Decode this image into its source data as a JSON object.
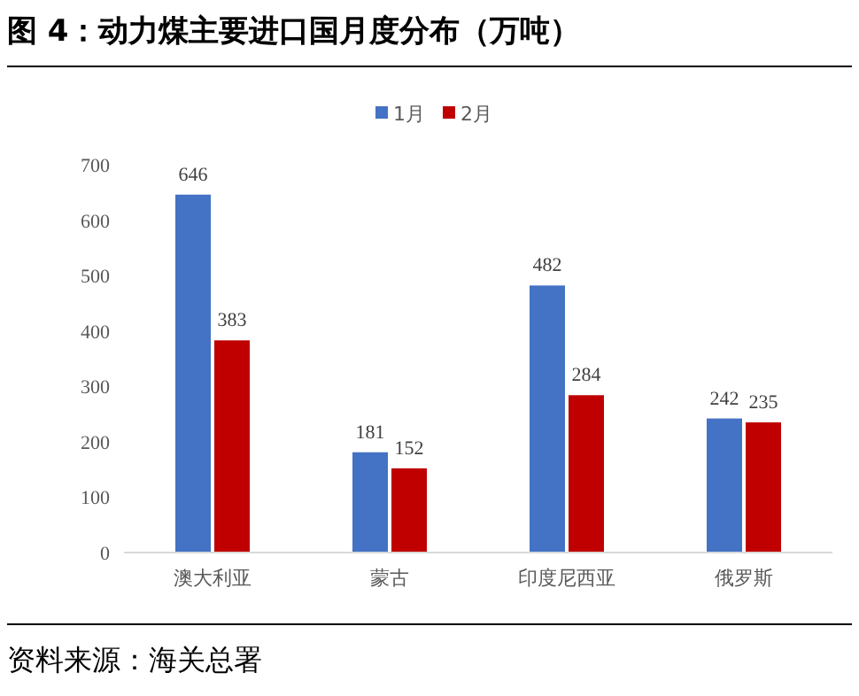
{
  "chart_data": {
    "type": "bar",
    "title": "图 4：动力煤主要进口国月度分布（万吨）",
    "categories": [
      "澳大利亚",
      "蒙古",
      "印度尼西亚",
      "俄罗斯"
    ],
    "series": [
      {
        "name": "1月",
        "color": "#4472c4",
        "values": [
          646,
          181,
          482,
          242
        ]
      },
      {
        "name": "2月",
        "color": "#c00000",
        "values": [
          383,
          152,
          284,
          235
        ]
      }
    ],
    "ylim": [
      0,
      700
    ],
    "yticks": [
      0,
      100,
      200,
      300,
      400,
      500,
      600,
      700
    ],
    "data_labels": true,
    "legend": "top",
    "grid": false,
    "annotations": [
      "资料来源：海关总署"
    ]
  }
}
